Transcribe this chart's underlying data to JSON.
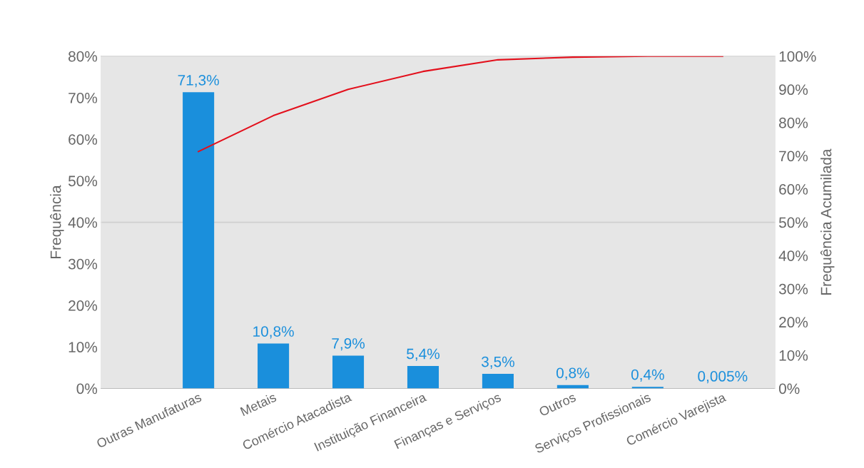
{
  "chart_data": {
    "type": "bar",
    "ylabel": "Frequência",
    "y2label": "Frequência Acumilada",
    "categories": [
      "Outras Manufaturas",
      "Metais",
      "Comércio Atacadista",
      "Instituição Financeira",
      "Finanças e Serviços",
      "Outros",
      "Serviços Profissionais",
      "Comércio Varejista"
    ],
    "series": [
      {
        "color": "#1a8fdc",
        "values": [
          71.3,
          10.8,
          7.9,
          5.4,
          3.5,
          0.8,
          0.4,
          0.005
        ],
        "value_labels": [
          "71,3%",
          "10,8%",
          "7,9%",
          "5,4%",
          "3,5%",
          "0,8%",
          "0,4%",
          "0,005%"
        ]
      },
      {
        "type": "line",
        "axis": "y2",
        "color": "#e3101c",
        "values": [
          71.3,
          82.1,
          90.0,
          95.4,
          98.9,
          99.7,
          100,
          100
        ]
      }
    ],
    "ylim": [
      0,
      80
    ],
    "yticks": [
      {
        "value": 0,
        "label": "0%"
      },
      {
        "value": 10,
        "label": "10%"
      },
      {
        "value": 20,
        "label": "20%"
      },
      {
        "value": 30,
        "label": "30%"
      },
      {
        "value": 40,
        "label": "40%"
      },
      {
        "value": 50,
        "label": "50%"
      },
      {
        "value": 60,
        "label": "60%"
      },
      {
        "value": 70,
        "label": "70%"
      },
      {
        "value": 80,
        "label": "80%"
      }
    ],
    "y2lim": [
      0,
      100
    ],
    "y2ticks": [
      {
        "value": 0,
        "label": "0%"
      },
      {
        "value": 10,
        "label": "10%"
      },
      {
        "value": 20,
        "label": "20%"
      },
      {
        "value": 30,
        "label": "30%"
      },
      {
        "value": 40,
        "label": "40%"
      },
      {
        "value": 50,
        "label": "50%"
      },
      {
        "value": 60,
        "label": "60%"
      },
      {
        "value": 70,
        "label": "70%"
      },
      {
        "value": 80,
        "label": "80%"
      },
      {
        "value": 90,
        "label": "90%"
      },
      {
        "value": 100,
        "label": "100%"
      }
    ],
    "ref_lines": [
      {
        "axis": "y",
        "value": 40,
        "label": null,
        "color": "#cfcfcf"
      }
    ],
    "grid": false,
    "legend": false,
    "marker": "none",
    "line_style": "solid"
  }
}
